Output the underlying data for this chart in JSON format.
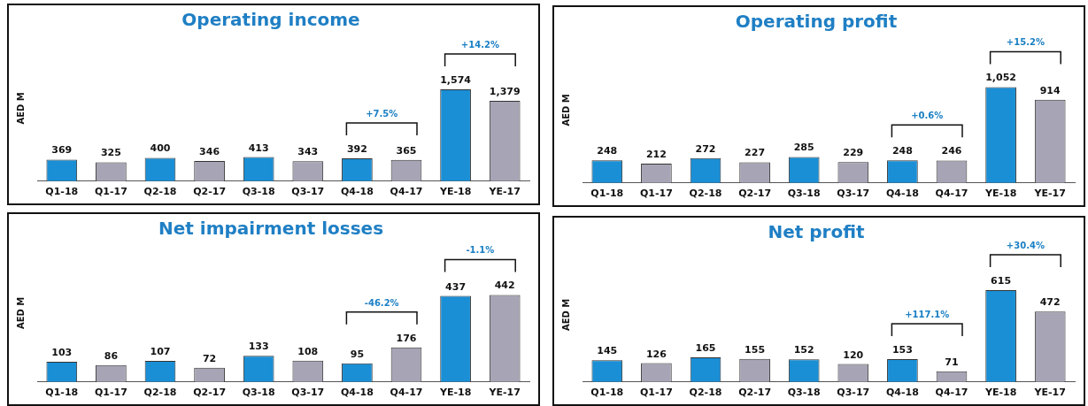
{
  "chart_data": [
    {
      "type": "bar",
      "title": "Operating income",
      "ylabel": "AED M",
      "categories": [
        "Q1-18",
        "Q1-17",
        "Q2-18",
        "Q2-17",
        "Q3-18",
        "Q3-17",
        "Q4-18",
        "Q4-17",
        "YE-18",
        "YE-17"
      ],
      "values": [
        369,
        325,
        400,
        346,
        413,
        343,
        392,
        365,
        1574,
        1379
      ],
      "value_labels": [
        "369",
        "325",
        "400",
        "346",
        "413",
        "343",
        "392",
        "365",
        "1,574",
        "1,379"
      ],
      "colors": [
        "#1a8fd6",
        "#a7a5b5",
        "#1a8fd6",
        "#a7a5b5",
        "#1a8fd6",
        "#a7a5b5",
        "#1a8fd6",
        "#a7a5b5",
        "#1a8fd6",
        "#a7a5b5"
      ],
      "tick_labels": "x",
      "grid": false,
      "legend": false,
      "annotations": [
        "+7.5%",
        "+14.2%"
      ]
    },
    {
      "type": "bar",
      "title": "Operating profit",
      "ylabel": "AED M",
      "categories": [
        "Q1-18",
        "Q1-17",
        "Q2-18",
        "Q2-17",
        "Q3-18",
        "Q3-17",
        "Q4-18",
        "Q4-17",
        "YE-18",
        "YE-17"
      ],
      "values": [
        248,
        212,
        272,
        227,
        285,
        229,
        248,
        246,
        1052,
        914
      ],
      "value_labels": [
        "248",
        "212",
        "272",
        "227",
        "285",
        "229",
        "248",
        "246",
        "1,052",
        "914"
      ],
      "colors": [
        "#1a8fd6",
        "#a7a5b5",
        "#1a8fd6",
        "#a7a5b5",
        "#1a8fd6",
        "#a7a5b5",
        "#1a8fd6",
        "#a7a5b5",
        "#1a8fd6",
        "#a7a5b5"
      ],
      "tick_labels": "x",
      "grid": false,
      "legend": false,
      "annotations": [
        "+0.6%",
        "+15.2%"
      ]
    },
    {
      "type": "bar",
      "title": "Net impairment losses",
      "ylabel": "AED M",
      "categories": [
        "Q1-18",
        "Q1-17",
        "Q2-18",
        "Q2-17",
        "Q3-18",
        "Q3-17",
        "Q4-18",
        "Q4-17",
        "YE-18",
        "YE-17"
      ],
      "values": [
        103,
        86,
        107,
        72,
        133,
        108,
        95,
        176,
        437,
        442
      ],
      "value_labels": [
        "103",
        "86",
        "107",
        "72",
        "133",
        "108",
        "95",
        "176",
        "437",
        "442"
      ],
      "colors": [
        "#1a8fd6",
        "#a7a5b5",
        "#1a8fd6",
        "#a7a5b5",
        "#1a8fd6",
        "#a7a5b5",
        "#1a8fd6",
        "#a7a5b5",
        "#1a8fd6",
        "#a7a5b5"
      ],
      "tick_labels": "x",
      "grid": false,
      "legend": false,
      "annotations": [
        "-46.2%",
        "-1.1%"
      ]
    },
    {
      "type": "bar",
      "title": "Net profit",
      "ylabel": "AED M",
      "categories": [
        "Q1-18",
        "Q1-17",
        "Q2-18",
        "Q2-17",
        "Q3-18",
        "Q3-17",
        "Q4-18",
        "Q4-17",
        "YE-18",
        "YE-17"
      ],
      "values": [
        145,
        126,
        165,
        155,
        152,
        120,
        153,
        71,
        615,
        472
      ],
      "value_labels": [
        "145",
        "126",
        "165",
        "155",
        "152",
        "120",
        "153",
        "71",
        "615",
        "472"
      ],
      "colors": [
        "#1a8fd6",
        "#a7a5b5",
        "#1a8fd6",
        "#a7a5b5",
        "#1a8fd6",
        "#a7a5b5",
        "#1a8fd6",
        "#a7a5b5",
        "#1a8fd6",
        "#a7a5b5"
      ],
      "tick_labels": "x",
      "grid": false,
      "legend": false,
      "annotations": [
        "+117.1%",
        "+30.4%"
      ]
    }
  ]
}
